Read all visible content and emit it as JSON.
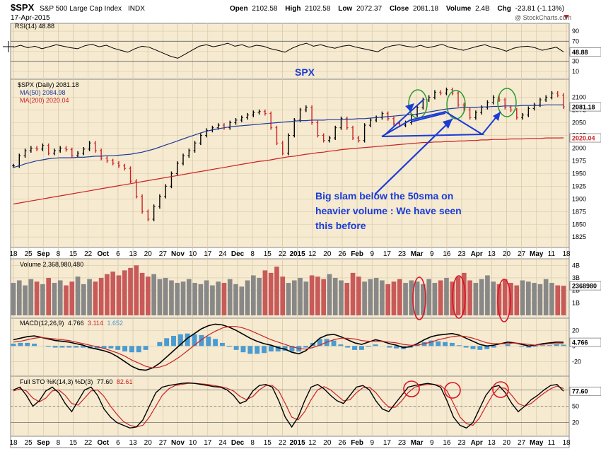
{
  "header": {
    "symbol": "$SPX",
    "name": "S&P 500 Large Cap Index",
    "exchange": "INDX",
    "date": "17-Apr-2015",
    "open_label": "Open",
    "open": "2102.58",
    "high_label": "High",
    "high": "2102.58",
    "low_label": "Low",
    "low": "2072.37",
    "close_label": "Close",
    "close": "2081.18",
    "volume_label": "Volume",
    "volume": "2.4B",
    "chg_label": "Chg",
    "chg": "-23.81 (-1.13%)",
    "watermark": "@ StockCharts.com"
  },
  "colors": {
    "panel_bg": "#f6ead1",
    "up": "#000000",
    "down": "#cc2222",
    "ma50": "#1f3a9a",
    "ma200": "#cc2222",
    "annotation": "#1a3cd6",
    "circle_green": "#2a9a2a",
    "circle_red": "#dd1122",
    "histogram": "#4a9bd1"
  },
  "chart_data": [
    {
      "type": "line",
      "panel": "RSI",
      "legend": "RSI(14) 48.88",
      "last": "48.88",
      "yticks": [
        "90",
        "70",
        "50",
        "30",
        "10"
      ],
      "ylim": [
        0,
        100
      ],
      "levels": [
        70,
        30
      ],
      "values": [
        58,
        62,
        57,
        60,
        55,
        59,
        63,
        60,
        57,
        55,
        61,
        64,
        59,
        62,
        56,
        52,
        48,
        55,
        60,
        58,
        52,
        46,
        40,
        36,
        44,
        52,
        60,
        63,
        59,
        62,
        66,
        60,
        63,
        58,
        62,
        60,
        55,
        52,
        48,
        56,
        62,
        66,
        60,
        63,
        59,
        56,
        60,
        62,
        58,
        55,
        52,
        49,
        57,
        61,
        63,
        60,
        58,
        62,
        57,
        60,
        64,
        58,
        55,
        52,
        56,
        60,
        63,
        58,
        55,
        50,
        56,
        59,
        60,
        57,
        52,
        55,
        58,
        48.88
      ]
    },
    {
      "type": "line",
      "panel": "price",
      "title": "SPX",
      "legend": [
        "$SPX (Daily) 2081.18",
        "MA(50) 2084.98",
        "MA(200) 2020.04"
      ],
      "last_price": "2081.18",
      "last_ma200": "2020.04",
      "yticks": [
        "2100",
        "2075",
        "2050",
        "2025",
        "2000",
        "1975",
        "1950",
        "1925",
        "1900",
        "1875",
        "1850",
        "1825"
      ],
      "ylim": [
        1810,
        2130
      ],
      "series": [
        {
          "name": "$SPX (Daily)",
          "values": [
            1965,
            1985,
            1995,
            2000,
            1998,
            2005,
            1990,
            1995,
            2000,
            1997,
            1985,
            1990,
            1998,
            2010,
            1995,
            1980,
            1975,
            1970,
            1965,
            1960,
            1935,
            1905,
            1875,
            1860,
            1885,
            1905,
            1925,
            1950,
            1970,
            1985,
            1995,
            2010,
            2025,
            2035,
            2040,
            2045,
            2040,
            2050,
            2055,
            2060,
            2065,
            2070,
            2072,
            2068,
            2040,
            2010,
            1990,
            2025,
            2055,
            2075,
            2080,
            2050,
            2025,
            2015,
            2020,
            2040,
            2058,
            2040,
            2020,
            2015,
            2045,
            2055,
            2060,
            2068,
            2058,
            2048,
            2045,
            2050,
            2065,
            2080,
            2095,
            2100,
            2110,
            2108,
            2115,
            2108,
            2085,
            2075,
            2060,
            2070,
            2080,
            2090,
            2100,
            2095,
            2080,
            2075,
            2060,
            2065,
            2078,
            2085,
            2095,
            2100,
            2108,
            2104,
            2081.18
          ]
        },
        {
          "name": "MA(50)",
          "values": [
            1962,
            1965,
            1969,
            1972,
            1975,
            1977,
            1979,
            1980,
            1981,
            1981,
            1981,
            1982,
            1982,
            1983,
            1984,
            1984,
            1985,
            1985,
            1986,
            1987,
            1988,
            1990,
            1992,
            1995,
            1998,
            2002,
            2006,
            2010,
            2014,
            2018,
            2022,
            2026,
            2030,
            2033,
            2036,
            2038,
            2040,
            2042,
            2043,
            2044,
            2045,
            2046,
            2047,
            2048,
            2049,
            2050,
            2051,
            2052,
            2053,
            2054,
            2054,
            2055,
            2055,
            2055,
            2056,
            2056,
            2056,
            2057,
            2057,
            2058,
            2058,
            2059,
            2060,
            2061,
            2062,
            2063,
            2064,
            2065,
            2066,
            2067,
            2069,
            2071,
            2073,
            2075,
            2077,
            2078,
            2079,
            2080,
            2080,
            2080,
            2081,
            2081,
            2082,
            2082,
            2083,
            2083,
            2083,
            2084,
            2084,
            2084,
            2084,
            2085,
            2085,
            2085,
            2084.98
          ]
        },
        {
          "name": "MA(200)",
          "values": [
            1890,
            1892,
            1894,
            1896,
            1898,
            1900,
            1902,
            1904,
            1906,
            1908,
            1910,
            1912,
            1914,
            1916,
            1918,
            1920,
            1922,
            1924,
            1926,
            1928,
            1930,
            1932,
            1934,
            1936,
            1938,
            1940,
            1942,
            1944,
            1946,
            1948,
            1950,
            1952,
            1954,
            1956,
            1958,
            1960,
            1962,
            1964,
            1966,
            1968,
            1970,
            1972,
            1974,
            1975,
            1977,
            1979,
            1981,
            1983,
            1984,
            1986,
            1988,
            1989,
            1991,
            1992,
            1994,
            1995,
            1997,
            1998,
            1999,
            2000,
            2001,
            2002,
            2003,
            2004,
            2005,
            2006,
            2007,
            2008,
            2009,
            2010,
            2011,
            2011,
            2012,
            2012,
            2013,
            2013,
            2014,
            2014,
            2015,
            2015,
            2016,
            2016,
            2017,
            2017,
            2017,
            2018,
            2018,
            2018,
            2019,
            2019,
            2019,
            2020,
            2020,
            2020,
            2020.04
          ]
        }
      ],
      "annotation": [
        "Big slam below the 50sma on",
        "heavier volume : We have seen",
        "this before"
      ]
    },
    {
      "type": "bar",
      "panel": "volume",
      "legend": "Volume 2,368,980,480",
      "last": "2368980",
      "yticks": [
        "4B",
        "3B",
        "2B",
        "1B"
      ],
      "ylim": [
        0,
        4.3
      ],
      "values": [
        2.6,
        2.8,
        2.4,
        2.9,
        2.7,
        2.5,
        3.0,
        2.6,
        2.8,
        2.4,
        2.7,
        3.1,
        2.5,
        2.9,
        2.7,
        3.0,
        3.3,
        3.5,
        3.2,
        3.6,
        3.8,
        4.0,
        3.4,
        3.1,
        3.3,
        2.9,
        3.0,
        2.8,
        2.6,
        2.7,
        2.9,
        2.6,
        2.5,
        2.8,
        2.4,
        2.7,
        2.6,
        2.9,
        2.5,
        2.3,
        2.8,
        3.2,
        3.0,
        3.6,
        3.4,
        3.9,
        3.1,
        2.6,
        2.8,
        3.0,
        2.7,
        3.2,
        3.1,
        2.9,
        3.3,
        3.0,
        2.8,
        2.6,
        3.4,
        3.1,
        2.7,
        2.9,
        3.0,
        2.8,
        2.5,
        2.7,
        2.9,
        2.6,
        2.8,
        2.7,
        2.5,
        2.9,
        2.6,
        2.8,
        3.0,
        2.7,
        3.1,
        3.4,
        2.8,
        2.6,
        2.9,
        3.2,
        2.7,
        2.5,
        2.9,
        2.6,
        2.4,
        2.8,
        2.7,
        2.6,
        2.5,
        2.9,
        2.6,
        2.4,
        2.37
      ],
      "colors": [
        "#888888",
        "#c85a5a"
      ]
    },
    {
      "type": "line",
      "panel": "MACD",
      "legend_label": "MACD(12,26,9)",
      "legend_values": [
        "4.766",
        "3.114",
        "1.652"
      ],
      "last": "4.766",
      "yticks": [
        "20",
        "0",
        "-20"
      ],
      "ylim": [
        -35,
        32
      ],
      "series": [
        {
          "name": "MACD",
          "values": [
            8,
            10,
            12,
            13,
            11,
            9,
            7,
            6,
            5,
            3,
            1,
            -2,
            -4,
            -6,
            -9,
            -14,
            -20,
            -26,
            -30,
            -31,
            -28,
            -22,
            -14,
            -6,
            2,
            10,
            16,
            22,
            26,
            28,
            27,
            24,
            20,
            15,
            10,
            6,
            3,
            1,
            -2,
            -4,
            -8,
            -10,
            -6,
            2,
            10,
            14,
            15,
            12,
            8,
            4,
            2,
            5,
            8,
            6,
            3,
            1,
            -2,
            -1,
            3,
            8,
            12,
            14,
            15,
            16,
            14,
            10,
            6,
            2,
            0,
            1,
            3,
            5,
            4,
            2,
            0,
            1,
            3,
            4,
            5,
            4.766
          ]
        },
        {
          "name": "Signal",
          "values": [
            5,
            6,
            8,
            10,
            11,
            10,
            9,
            8,
            7,
            5,
            3,
            1,
            -1,
            -3,
            -6,
            -9,
            -13,
            -18,
            -22,
            -26,
            -28,
            -27,
            -24,
            -19,
            -13,
            -6,
            1,
            8,
            14,
            19,
            23,
            25,
            25,
            23,
            20,
            16,
            12,
            8,
            5,
            2,
            -1,
            -3,
            -4,
            -2,
            1,
            5,
            8,
            10,
            10,
            9,
            7,
            6,
            6,
            6,
            5,
            4,
            2,
            1,
            1,
            3,
            5,
            8,
            10,
            12,
            13,
            12,
            10,
            7,
            4,
            3,
            3,
            3,
            4,
            3,
            2,
            1,
            2,
            3,
            3,
            3.114
          ]
        },
        {
          "name": "Histogram",
          "values": [
            3,
            4,
            4,
            3,
            0,
            -1,
            -2,
            -2,
            -2,
            -2,
            -2,
            -3,
            -3,
            -3,
            -3,
            -5,
            -7,
            -8,
            -8,
            -5,
            0,
            5,
            10,
            13,
            15,
            16,
            15,
            14,
            12,
            9,
            4,
            -1,
            -5,
            -8,
            -10,
            -10,
            -9,
            -7,
            -7,
            -6,
            -7,
            -7,
            -2,
            4,
            9,
            9,
            7,
            2,
            -2,
            -5,
            -5,
            -1,
            2,
            0,
            -2,
            -3,
            -4,
            -2,
            2,
            5,
            7,
            6,
            5,
            4,
            1,
            -2,
            -4,
            -5,
            -4,
            -2,
            0,
            2,
            0,
            -1,
            -2,
            -1,
            1,
            1,
            2,
            1.652
          ]
        }
      ]
    },
    {
      "type": "line",
      "panel": "Stochastic",
      "legend_label": "Full STO %K(14,3) %D(3)",
      "legend_values": [
        "77.60",
        "82.61"
      ],
      "last": "77.60",
      "yticks": [
        "80",
        "50",
        "20"
      ],
      "ylim": [
        0,
        100
      ],
      "levels": [
        80,
        50,
        20
      ],
      "series": [
        {
          "name": "%K",
          "values": [
            80,
            85,
            70,
            50,
            60,
            78,
            85,
            75,
            55,
            40,
            60,
            80,
            85,
            70,
            45,
            30,
            20,
            15,
            10,
            12,
            25,
            50,
            75,
            85,
            88,
            90,
            92,
            93,
            92,
            90,
            88,
            86,
            85,
            80,
            70,
            55,
            60,
            78,
            88,
            90,
            85,
            60,
            30,
            12,
            30,
            60,
            85,
            90,
            82,
            70,
            60,
            55,
            70,
            85,
            88,
            80,
            60,
            45,
            40,
            55,
            70,
            85,
            88,
            90,
            92,
            90,
            85,
            60,
            30,
            15,
            10,
            20,
            45,
            70,
            85,
            88,
            75,
            55,
            40,
            50,
            62,
            70,
            80,
            88,
            90,
            77.6
          ]
        },
        {
          "name": "%D",
          "values": [
            78,
            82,
            78,
            65,
            58,
            65,
            78,
            80,
            70,
            55,
            52,
            65,
            78,
            80,
            68,
            50,
            35,
            22,
            15,
            12,
            15,
            30,
            50,
            70,
            82,
            88,
            90,
            92,
            92,
            91,
            90,
            88,
            86,
            83,
            78,
            68,
            62,
            68,
            80,
            88,
            88,
            78,
            55,
            30,
            25,
            40,
            62,
            80,
            86,
            80,
            70,
            60,
            62,
            75,
            84,
            85,
            75,
            60,
            48,
            48,
            60,
            75,
            85,
            88,
            90,
            90,
            88,
            78,
            55,
            30,
            18,
            15,
            28,
            50,
            70,
            84,
            83,
            70,
            55,
            50,
            55,
            65,
            74,
            82,
            87,
            82.61
          ]
        }
      ]
    },
    {
      "type": "table",
      "panel": "x-axis",
      "date_labels": [
        "18",
        "25",
        "Sep",
        "8",
        "15",
        "22",
        "Oct",
        "6",
        "13",
        "20",
        "27",
        "Nov",
        "10",
        "17",
        "24",
        "Dec",
        "8",
        "15",
        "22",
        "2015",
        "12",
        "20",
        "26",
        "Feb",
        "9",
        "17",
        "23",
        "Mar",
        "9",
        "16",
        "23",
        "Apr",
        "13",
        "20",
        "27",
        "May",
        "11",
        "18"
      ]
    }
  ]
}
